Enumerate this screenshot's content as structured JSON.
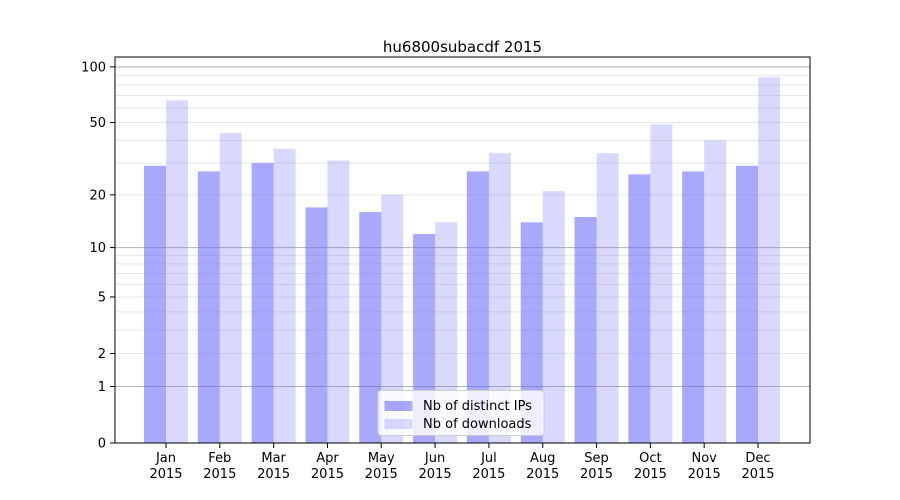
{
  "chart_data": {
    "type": "bar",
    "title": "hu6800subacdf 2015",
    "categories": [
      "Jan",
      "Feb",
      "Mar",
      "Apr",
      "May",
      "Jun",
      "Jul",
      "Aug",
      "Sep",
      "Oct",
      "Nov",
      "Dec"
    ],
    "x_year": "2015",
    "series": [
      {
        "name": "Nb of distinct IPs",
        "values": [
          29,
          27,
          30,
          17,
          16,
          12,
          27,
          14,
          15,
          26,
          27,
          29
        ],
        "color": "#6666ff",
        "opacity": 0.57
      },
      {
        "name": "Nb of downloads",
        "values": [
          66,
          44,
          36,
          31,
          20,
          14,
          34,
          21,
          34,
          49,
          40,
          88
        ],
        "color": "#6666ff",
        "opacity": 0.25
      }
    ],
    "xlabel": "",
    "ylabel": "",
    "yscale": "log1p",
    "ylim": [
      0,
      113
    ],
    "yticks": [
      0,
      1,
      2,
      5,
      10,
      20,
      50,
      100
    ],
    "minor_yticks": [
      3,
      4,
      6,
      7,
      8,
      9,
      30,
      40,
      60,
      70,
      80,
      90
    ],
    "emphasized_yticks": [
      1,
      10,
      100
    ],
    "grid": "horizontal",
    "legend": {
      "position": "lower center"
    },
    "colors": {
      "background": "#ffffff",
      "axis": "#000000",
      "grid_minor": "#e7e7e7",
      "grid_emphasized": "#b3b3b3",
      "legend_border": "#cccccc",
      "legend_background": "#ffffff"
    }
  }
}
